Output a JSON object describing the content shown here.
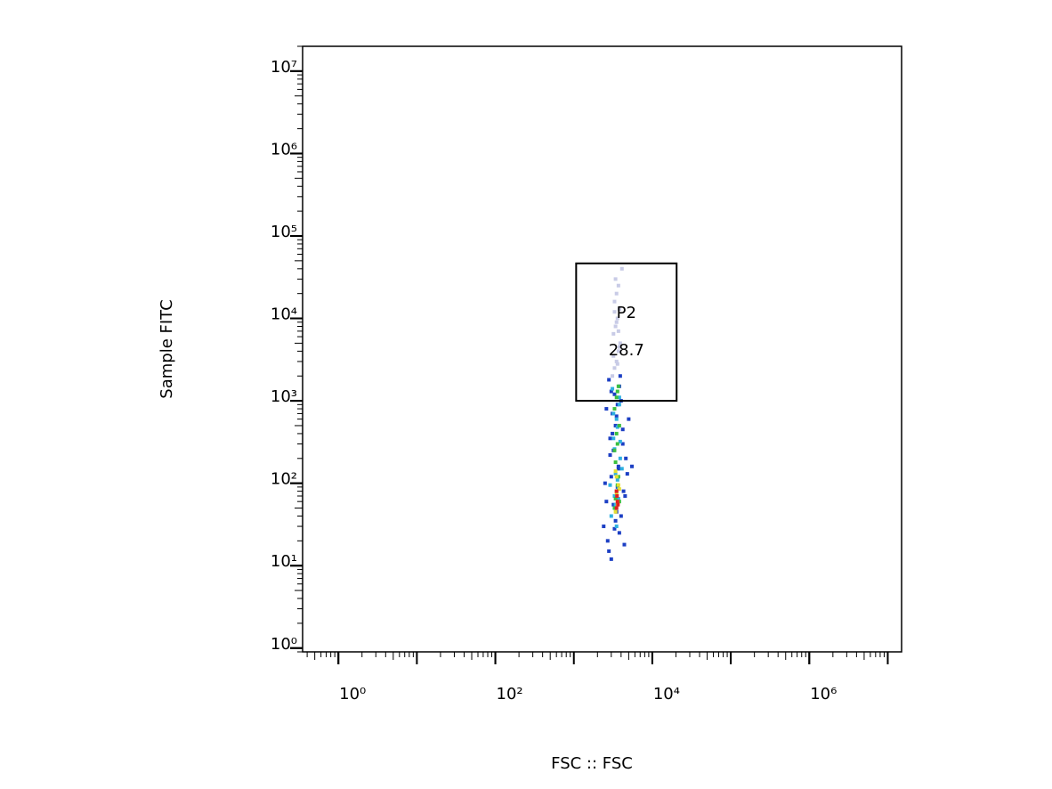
{
  "chart_data": {
    "type": "scatter",
    "x_label": "FSC :: FSC",
    "y_label": "Sample FITC",
    "log_x": true,
    "log_y": true,
    "xlim": [
      0.35,
      15000000
    ],
    "ylim": [
      0.9,
      20000000
    ],
    "xticks": [
      {
        "value": 1,
        "label": "10⁰"
      },
      {
        "value": 100,
        "label": "10²"
      },
      {
        "value": 10000,
        "label": "10⁴"
      },
      {
        "value": 1000000,
        "label": "10⁶"
      }
    ],
    "yticks": [
      {
        "value": 1,
        "label": "10⁰"
      },
      {
        "value": 10,
        "label": "10¹"
      },
      {
        "value": 100,
        "label": "10²"
      },
      {
        "value": 1000,
        "label": "10³"
      },
      {
        "value": 10000,
        "label": "10⁴"
      },
      {
        "value": 100000,
        "label": "10⁵"
      },
      {
        "value": 1000000,
        "label": "10⁶"
      },
      {
        "value": 10000000,
        "label": "10⁷"
      }
    ],
    "series": [
      {
        "color": "#1c3fc4",
        "x": [
          2400,
          2600,
          2800,
          3000,
          3200,
          3400,
          3600,
          3800,
          4000,
          4300,
          4600,
          5000,
          2500,
          2700,
          2900,
          3100,
          3300,
          3500,
          3700,
          3900,
          4200,
          4500,
          4800,
          2600,
          3000,
          3400,
          3800,
          4200,
          2800,
          3200,
          3600,
          4000,
          4400,
          3100,
          3500,
          2900,
          3300,
          3700,
          5500,
          3000
        ],
        "values": [
          30,
          60,
          15,
          120,
          250,
          500,
          900,
          1500,
          40,
          80,
          200,
          600,
          100,
          20,
          350,
          700,
          1200,
          45,
          160,
          2000,
          300,
          70,
          130,
          800,
          12,
          35,
          25,
          450,
          1800,
          55,
          90,
          1000,
          18,
          400,
          650,
          220,
          28,
          150,
          160,
          1300
        ]
      },
      {
        "color": "#2fb0e0",
        "x": [
          3000,
          3300,
          3600,
          3900,
          3200,
          3500,
          3800,
          3100,
          3400,
          3700,
          4100,
          3300,
          3600,
          2900,
          3500,
          3800,
          3200,
          3400,
          3700,
          3900
        ],
        "values": [
          40,
          70,
          110,
          200,
          350,
          600,
          900,
          1400,
          55,
          85,
          150,
          260,
          480,
          95,
          30,
          1100,
          700,
          130,
          65,
          320
        ]
      },
      {
        "color": "#3cc040",
        "x": [
          3300,
          3500,
          3700,
          3400,
          3600,
          3800,
          3300,
          3500,
          3700,
          3400,
          3600,
          3500,
          3800,
          3300,
          3600
        ],
        "values": [
          50,
          80,
          120,
          180,
          300,
          500,
          800,
          1100,
          1500,
          65,
          95,
          400,
          60,
          250,
          1300
        ]
      },
      {
        "color": "#e6e030",
        "x": [
          3400,
          3600,
          3500,
          3700,
          3500,
          3600,
          3400,
          3800
        ],
        "values": [
          45,
          60,
          75,
          95,
          120,
          55,
          140,
          85
        ]
      },
      {
        "color": "#e02020",
        "x": [
          3500,
          3600,
          3550,
          3650,
          3500
        ],
        "values": [
          50,
          60,
          70,
          55,
          80
        ]
      },
      {
        "color": "#c8cbe6",
        "x": [
          3100,
          3300,
          3500,
          3700,
          3900,
          3200,
          3400,
          3600,
          3800,
          3300,
          3500,
          3700,
          3400,
          3600,
          3200,
          3800,
          3500,
          3300,
          3700,
          4100
        ],
        "values": [
          2000,
          2500,
          3000,
          4000,
          5000,
          6500,
          8000,
          10000,
          13000,
          16000,
          20000,
          25000,
          30000,
          2800,
          3500,
          4500,
          9000,
          12000,
          7000,
          40000
        ]
      }
    ],
    "gate": {
      "name": "P2",
      "value": 28.7,
      "x": [
        1070,
        20400
      ],
      "y": [
        1000,
        46500
      ]
    }
  }
}
